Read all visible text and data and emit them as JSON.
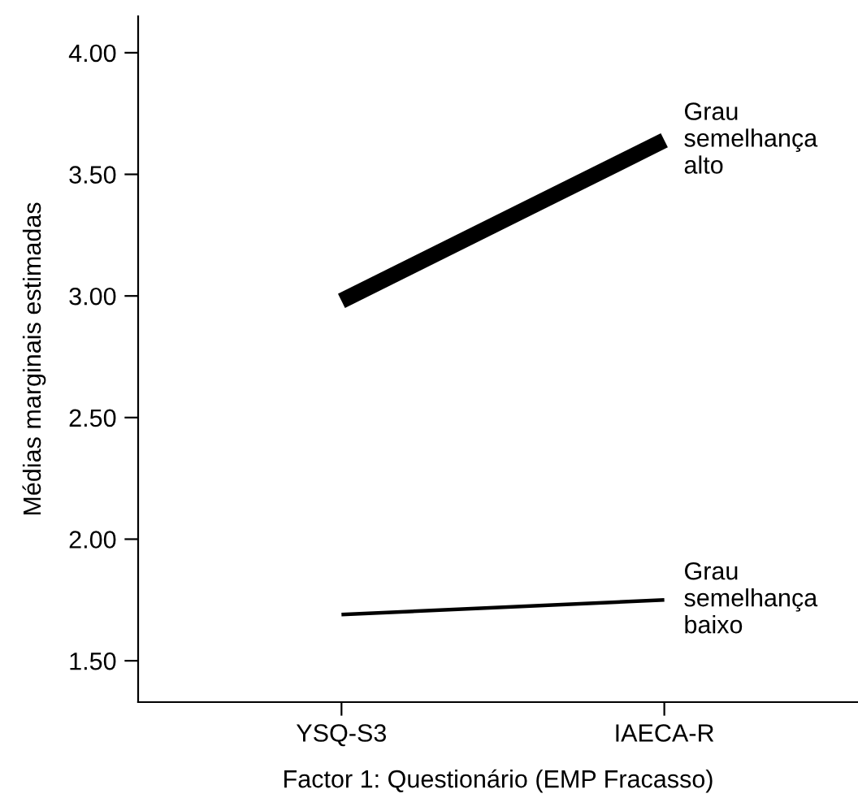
{
  "chart_data": {
    "type": "line",
    "xlabel": "Factor 1: Questionário (EMP Fracasso)",
    "ylabel": "Médias marginais estimadas",
    "categories": [
      "YSQ-S3",
      "IAECA-R"
    ],
    "series": [
      {
        "name": "Grau\nsemelhança\nalto",
        "color": "#000000",
        "values": [
          2.98,
          3.64
        ]
      },
      {
        "name": "Grau\nsemelhança\nbaixo",
        "color": "#000000",
        "values": [
          1.69,
          1.75
        ]
      }
    ],
    "ylim": [
      1.33,
      4.15
    ],
    "yticks": [
      {
        "value": 1.5,
        "label": "1.50"
      },
      {
        "value": 2.0,
        "label": "2.00"
      },
      {
        "value": 2.5,
        "label": "2.50"
      },
      {
        "value": 3.0,
        "label": "3.00"
      },
      {
        "value": 3.5,
        "label": "3.50"
      },
      {
        "value": 4.0,
        "label": "4.00"
      }
    ],
    "grid": false,
    "legend": false,
    "marker": "none",
    "line_style": "solid"
  }
}
